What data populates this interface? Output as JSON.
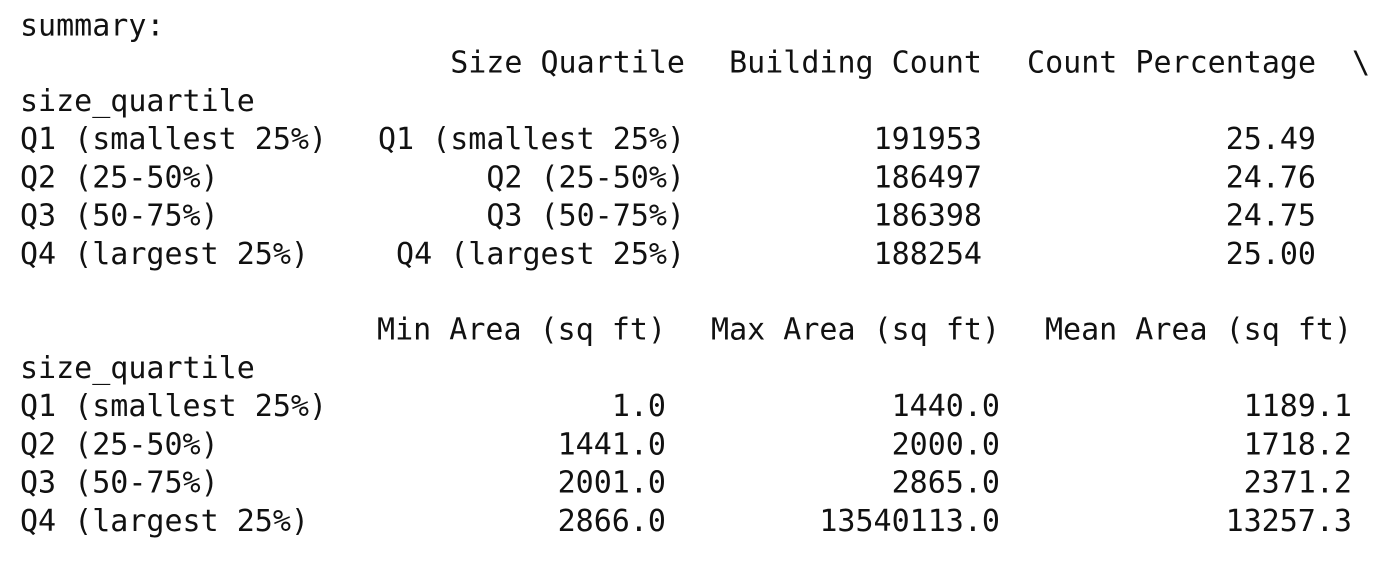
{
  "label": "summary:",
  "table1": {
    "columns": [
      "Size Quartile",
      "Building Count",
      "Count Percentage"
    ],
    "continuation": "\\",
    "index_name": "size_quartile",
    "rows": [
      [
        "Q1 (smallest 25%)",
        "Q1 (smallest 25%)",
        "191953",
        "25.49"
      ],
      [
        "Q2 (25-50%)",
        "Q2 (25-50%)",
        "186497",
        "24.76"
      ],
      [
        "Q3 (50-75%)",
        "Q3 (50-75%)",
        "186398",
        "24.75"
      ],
      [
        "Q4 (largest 25%)",
        "Q4 (largest 25%)",
        "188254",
        "25.00"
      ]
    ]
  },
  "table2": {
    "columns": [
      "Min Area (sq ft)",
      "Max Area (sq ft)",
      "Mean Area (sq ft)"
    ],
    "index_name": "size_quartile",
    "rows": [
      [
        "Q1 (smallest 25%)",
        "1.0",
        "1440.0",
        "1189.1"
      ],
      [
        "Q2 (25-50%)",
        "1441.0",
        "2000.0",
        "1718.2"
      ],
      [
        "Q3 (50-75%)",
        "2001.0",
        "2865.0",
        "2371.2"
      ],
      [
        "Q4 (largest 25%)",
        "2866.0",
        "13540113.0",
        "13257.3"
      ]
    ]
  }
}
